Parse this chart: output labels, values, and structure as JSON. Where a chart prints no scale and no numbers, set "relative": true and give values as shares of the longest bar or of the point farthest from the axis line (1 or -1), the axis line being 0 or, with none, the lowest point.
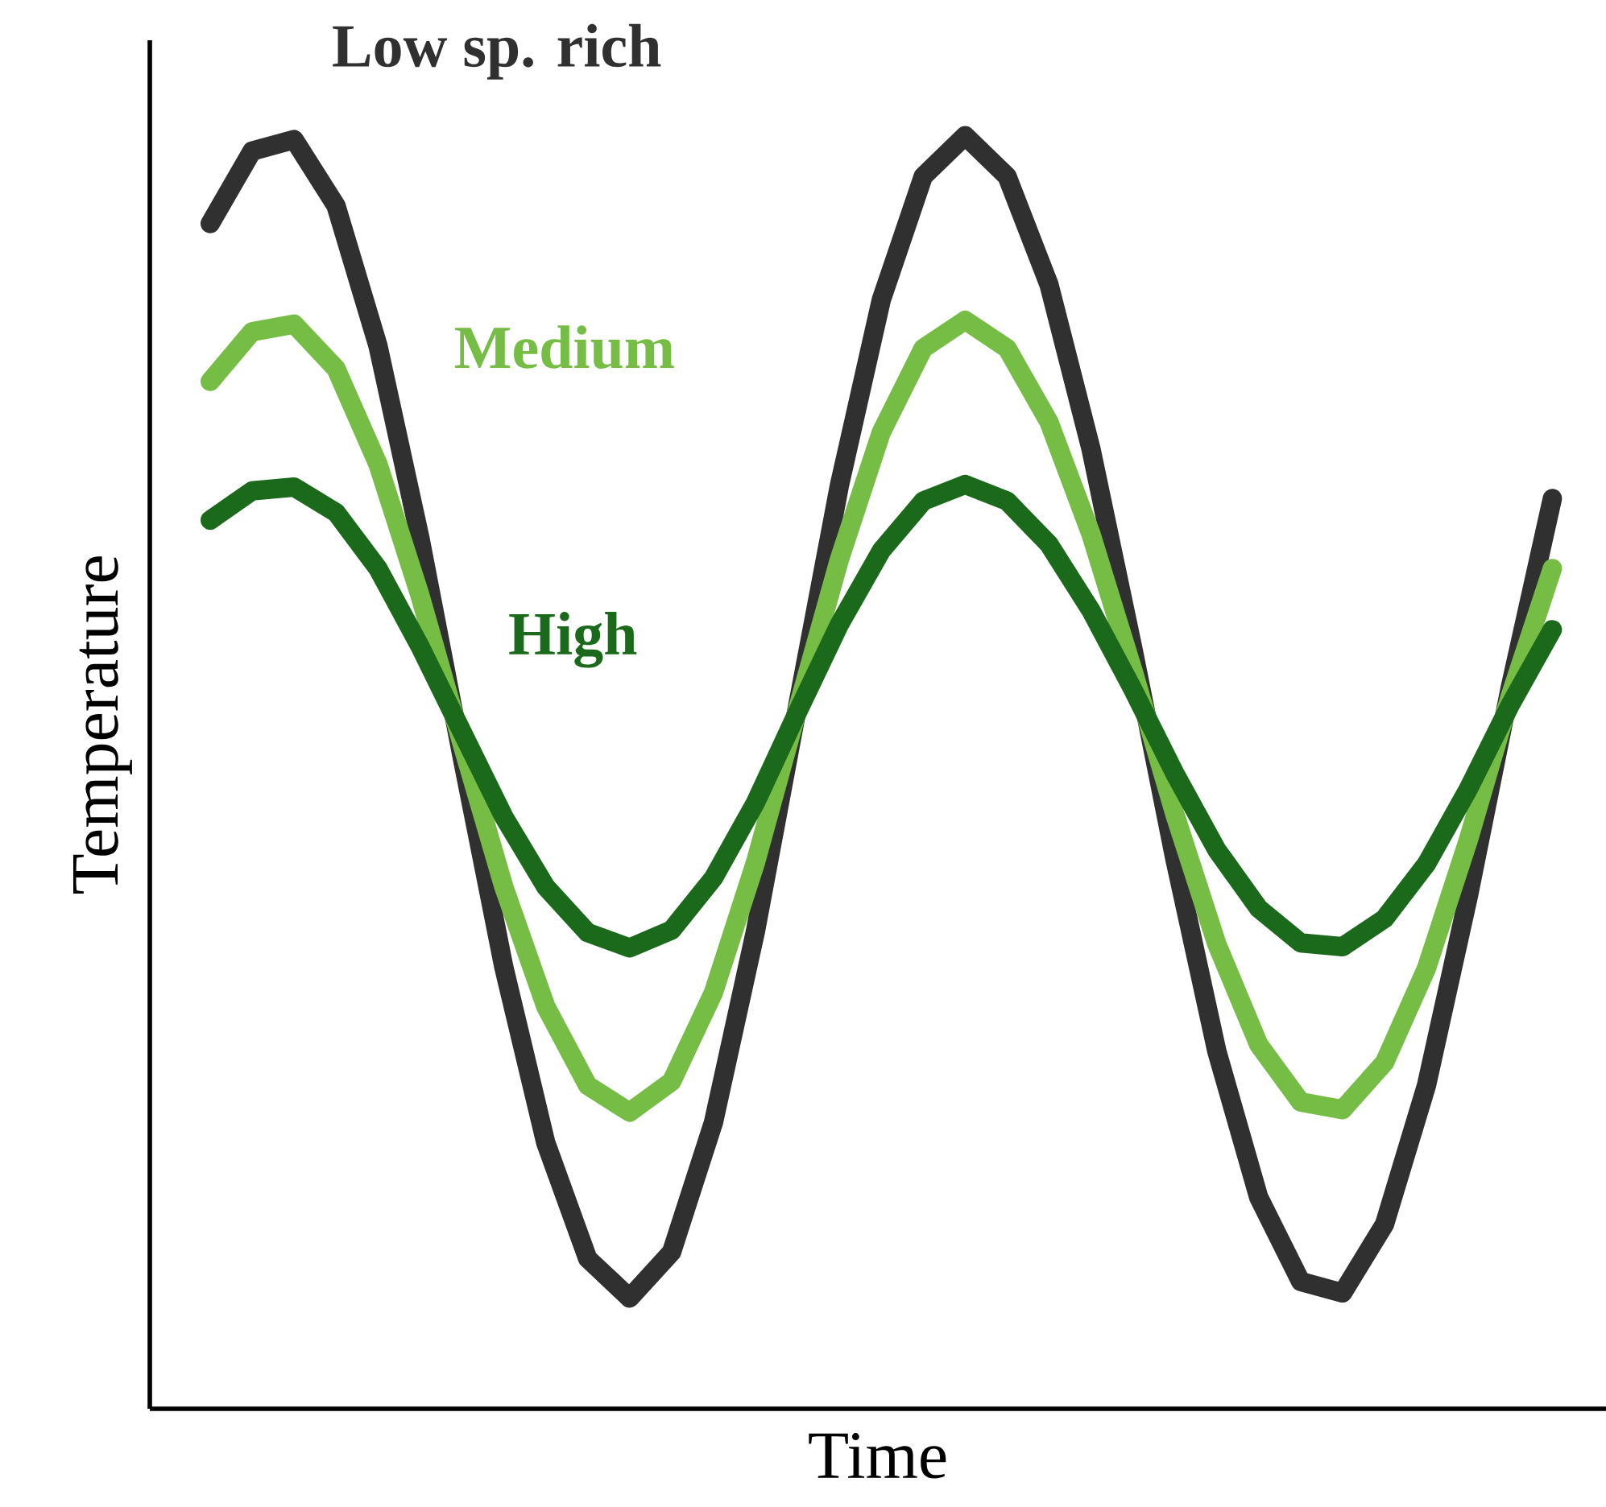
{
  "chart_data": {
    "type": "line",
    "relative": true,
    "xlabel": "Time",
    "ylabel": "Temperature",
    "categories": [
      null,
      null,
      null,
      null,
      null,
      null,
      null,
      null,
      null,
      null,
      null,
      null,
      null,
      null,
      null,
      null,
      null,
      null,
      null,
      null,
      null,
      null,
      null,
      null,
      null,
      null,
      null,
      null,
      null,
      null,
      null,
      null,
      null
    ],
    "legend": false,
    "marker": "none",
    "line_style": "solid",
    "series": [
      {
        "name": "Low sp. rich",
        "color": "#303030",
        "values": [
          0.931,
          0.988,
          0.997,
          0.945,
          0.835,
          0.684,
          0.513,
          0.347,
          0.209,
          0.118,
          0.087,
          0.123,
          0.225,
          0.375,
          0.551,
          0.725,
          0.871,
          0.968,
          1.0,
          0.968,
          0.883,
          0.754,
          0.597,
          0.432,
          0.281,
          0.166,
          0.1,
          0.091,
          0.145,
          0.254,
          0.403,
          0.567,
          0.715
        ]
      },
      {
        "name": "Medium",
        "color": "#76bd45",
        "values": [
          0.807,
          0.846,
          0.852,
          0.817,
          0.742,
          0.639,
          0.523,
          0.41,
          0.316,
          0.254,
          0.233,
          0.257,
          0.327,
          0.429,
          0.549,
          0.667,
          0.767,
          0.833,
          0.855,
          0.833,
          0.775,
          0.687,
          0.58,
          0.467,
          0.365,
          0.286,
          0.241,
          0.235,
          0.272,
          0.346,
          0.447,
          0.56,
          0.66
        ]
      },
      {
        "name": "High",
        "color": "#1b6a1b",
        "values": [
          0.698,
          0.721,
          0.724,
          0.704,
          0.66,
          0.599,
          0.532,
          0.465,
          0.41,
          0.374,
          0.362,
          0.376,
          0.417,
          0.476,
          0.547,
          0.616,
          0.674,
          0.713,
          0.726,
          0.713,
          0.679,
          0.627,
          0.565,
          0.499,
          0.439,
          0.393,
          0.366,
          0.363,
          0.385,
          0.428,
          0.487,
          0.553,
          0.612
        ]
      }
    ]
  }
}
